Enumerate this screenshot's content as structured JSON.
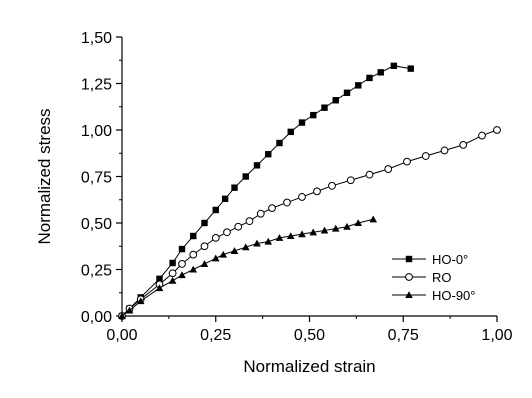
{
  "chart_data": {
    "type": "line",
    "title": "",
    "xlabel": "Normalized strain",
    "ylabel": "Normalized stress",
    "xlim": [
      0,
      1
    ],
    "ylim": [
      0,
      1.5
    ],
    "x_ticks": [
      "0,00",
      "0,25",
      "0,50",
      "0,75",
      "1,00"
    ],
    "y_ticks": [
      "0,00",
      "0,25",
      "0,50",
      "0,75",
      "1,00",
      "1,25",
      "1,50"
    ],
    "grid": false,
    "legend": {
      "position": "bottom-right"
    },
    "series": [
      {
        "name": "HO-0°",
        "marker": "filled-square",
        "color": "#000000",
        "points": [
          [
            0,
            0
          ],
          [
            0.02,
            0.04
          ],
          [
            0.05,
            0.1
          ],
          [
            0.1,
            0.2
          ],
          [
            0.135,
            0.285
          ],
          [
            0.16,
            0.36
          ],
          [
            0.19,
            0.43
          ],
          [
            0.22,
            0.5
          ],
          [
            0.25,
            0.57
          ],
          [
            0.275,
            0.63
          ],
          [
            0.3,
            0.69
          ],
          [
            0.33,
            0.75
          ],
          [
            0.36,
            0.81
          ],
          [
            0.39,
            0.87
          ],
          [
            0.42,
            0.93
          ],
          [
            0.45,
            0.99
          ],
          [
            0.48,
            1.04
          ],
          [
            0.51,
            1.08
          ],
          [
            0.54,
            1.12
          ],
          [
            0.57,
            1.16
          ],
          [
            0.6,
            1.2
          ],
          [
            0.63,
            1.24
          ],
          [
            0.66,
            1.28
          ],
          [
            0.69,
            1.31
          ],
          [
            0.725,
            1.345
          ],
          [
            0.77,
            1.33
          ]
        ]
      },
      {
        "name": "RO",
        "marker": "open-circle",
        "color": "#000000",
        "points": [
          [
            0,
            0
          ],
          [
            0.02,
            0.04
          ],
          [
            0.05,
            0.09
          ],
          [
            0.1,
            0.17
          ],
          [
            0.135,
            0.23
          ],
          [
            0.16,
            0.28
          ],
          [
            0.19,
            0.33
          ],
          [
            0.22,
            0.375
          ],
          [
            0.25,
            0.42
          ],
          [
            0.28,
            0.45
          ],
          [
            0.31,
            0.48
          ],
          [
            0.34,
            0.51
          ],
          [
            0.37,
            0.55
          ],
          [
            0.4,
            0.58
          ],
          [
            0.44,
            0.61
          ],
          [
            0.48,
            0.64
          ],
          [
            0.52,
            0.67
          ],
          [
            0.56,
            0.7
          ],
          [
            0.61,
            0.73
          ],
          [
            0.66,
            0.76
          ],
          [
            0.71,
            0.79
          ],
          [
            0.76,
            0.83
          ],
          [
            0.81,
            0.86
          ],
          [
            0.86,
            0.89
          ],
          [
            0.91,
            0.92
          ],
          [
            0.96,
            0.97
          ],
          [
            1.0,
            1.0
          ]
        ]
      },
      {
        "name": "HO-90°",
        "marker": "filled-triangle",
        "color": "#000000",
        "points": [
          [
            0,
            0
          ],
          [
            0.02,
            0.03
          ],
          [
            0.05,
            0.08
          ],
          [
            0.1,
            0.15
          ],
          [
            0.135,
            0.19
          ],
          [
            0.16,
            0.22
          ],
          [
            0.19,
            0.25
          ],
          [
            0.22,
            0.28
          ],
          [
            0.25,
            0.31
          ],
          [
            0.27,
            0.33
          ],
          [
            0.3,
            0.35
          ],
          [
            0.33,
            0.37
          ],
          [
            0.36,
            0.39
          ],
          [
            0.39,
            0.4
          ],
          [
            0.42,
            0.42
          ],
          [
            0.45,
            0.43
          ],
          [
            0.48,
            0.44
          ],
          [
            0.51,
            0.45
          ],
          [
            0.54,
            0.46
          ],
          [
            0.57,
            0.47
          ],
          [
            0.6,
            0.48
          ],
          [
            0.63,
            0.5
          ],
          [
            0.67,
            0.52
          ]
        ]
      }
    ]
  }
}
